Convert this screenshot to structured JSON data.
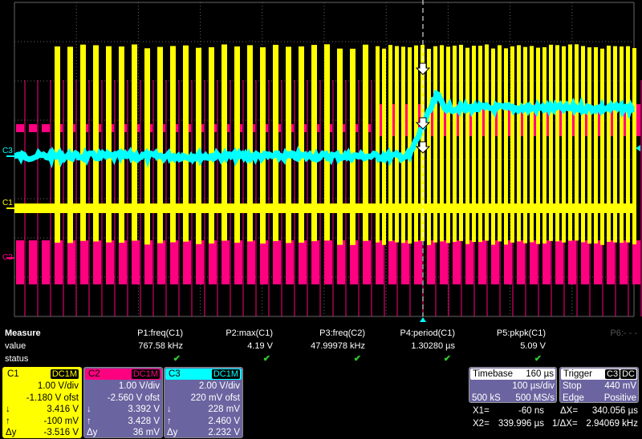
{
  "colors": {
    "c1": "#ffff00",
    "c2": "#ff0080",
    "c3": "#00ffff",
    "panel": "#6a64a0"
  },
  "traces": {
    "labels": [
      "C3",
      "C1",
      "C2"
    ]
  },
  "measure": {
    "title": "Measure",
    "value_label": "value",
    "status_label": "status",
    "params": [
      {
        "name": "P1:freq(C1)",
        "value": "767.58 kHz",
        "status": "✔"
      },
      {
        "name": "P2:max(C1)",
        "value": "4.19 V",
        "status": "✔"
      },
      {
        "name": "P3:freq(C2)",
        "value": "47.99978 kHz",
        "status": "✔"
      },
      {
        "name": "P4:period(C1)",
        "value": "1.30280 µs",
        "status": "✔"
      },
      {
        "name": "P5:pkpk(C1)",
        "value": "5.09 V",
        "status": "✔"
      },
      {
        "name": "P6:- - -",
        "value": "",
        "status": ""
      }
    ]
  },
  "channels": [
    {
      "name": "C1",
      "coupling": "DC1M",
      "vdiv": "1.00 V/div",
      "offset": "-1.180 V ofst",
      "down_sym": "↓",
      "down": "3.416 V",
      "up_sym": "↑",
      "up": "-100 mV",
      "dy_sym": "Δy",
      "dy": "-3.516 V"
    },
    {
      "name": "C2",
      "coupling": "DC1M",
      "vdiv": "1.00 V/div",
      "offset": "-2.560 V ofst",
      "down_sym": "↓",
      "down": "3.392 V",
      "up_sym": "↑",
      "up": "3.428 V",
      "dy_sym": "Δy",
      "dy": "36 mV"
    },
    {
      "name": "C3",
      "coupling": "DC1M",
      "vdiv": "2.00 V/div",
      "offset": "220 mV ofst",
      "down_sym": "↓",
      "down": "228 mV",
      "up_sym": "↑",
      "up": "2.460 V",
      "dy_sym": "Δy",
      "dy": "2.232 V"
    }
  ],
  "timebase": {
    "label": "Timebase",
    "delay": "160 µs",
    "tdiv": "100 µs/div",
    "samples": "500 kS",
    "rate": "500 MS/s"
  },
  "trigger": {
    "label": "Trigger",
    "source": "C3",
    "coupling": "DC",
    "mode": "Stop",
    "level": "440 mV",
    "type": "Edge",
    "slope": "Positive"
  },
  "cursors": {
    "x1_label": "X1=",
    "x1": "-60 ns",
    "x2_label": "X2=",
    "x2": "339.996 µs",
    "dx_label": "ΔX=",
    "dx": "340.056 µs",
    "inv_label": "1/ΔX=",
    "inv": "2.94069 kHz"
  }
}
